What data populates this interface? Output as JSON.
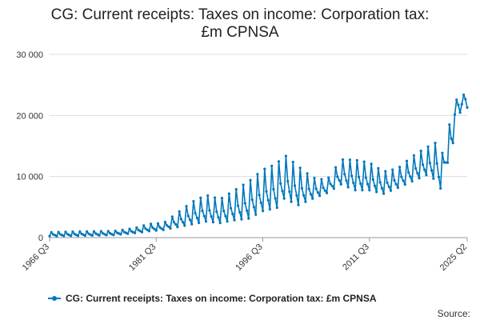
{
  "title_line1": "CG: Current receipts: Taxes on income: Corporation tax:",
  "title_line2": "£m CPNSA",
  "legend_label": "CG: Current receipts: Taxes on income: Corporation tax: £m CPNSA",
  "source_label": "Source:",
  "colors": {
    "series": "#0077bb",
    "grid": "#dddddd",
    "axis": "#999999"
  },
  "chart_data": {
    "type": "line",
    "title": "CG: Current receipts: Taxes on income: Corporation tax: £m CPNSA",
    "xlabel": "",
    "ylabel": "",
    "ylim": [
      0,
      30000
    ],
    "yticks": [
      0,
      10000,
      20000,
      30000
    ],
    "ytick_labels": [
      "0",
      "10 000",
      "20 000",
      "30 000"
    ],
    "x_start": "1966 Q3",
    "x_end": "2025 Q2",
    "xtick_labels": [
      "1966 Q3",
      "1981 Q3",
      "1996 Q3",
      "2011 Q3",
      "2025 Q2"
    ],
    "xtick_index": [
      0,
      60,
      120,
      180,
      235
    ],
    "series": [
      {
        "name": "CG: Current receipts: Taxes on income: Corporation tax: £m CPNSA",
        "frequency": "quarterly",
        "anchors": [
          [
            0,
            200,
            900
          ],
          [
            12,
            250,
            1000
          ],
          [
            24,
            300,
            1050
          ],
          [
            36,
            400,
            1100
          ],
          [
            48,
            700,
            1600
          ],
          [
            56,
            1000,
            2300
          ],
          [
            64,
            1200,
            2400
          ],
          [
            72,
            1600,
            4200
          ],
          [
            80,
            2000,
            6000
          ],
          [
            88,
            2400,
            7200
          ],
          [
            96,
            2200,
            6500
          ],
          [
            104,
            2600,
            8000
          ],
          [
            112,
            2800,
            9500
          ],
          [
            120,
            4000,
            11500
          ],
          [
            128,
            4500,
            12500
          ],
          [
            132,
            6000,
            14000
          ],
          [
            140,
            5000,
            12000
          ],
          [
            148,
            6200,
            10000
          ],
          [
            156,
            7200,
            9500
          ],
          [
            164,
            8500,
            13000
          ],
          [
            172,
            7500,
            13000
          ],
          [
            180,
            7500,
            12500
          ],
          [
            188,
            7000,
            11000
          ],
          [
            196,
            8000,
            11500
          ],
          [
            204,
            9000,
            13500
          ],
          [
            212,
            10000,
            15000
          ],
          [
            218,
            9000,
            16000
          ],
          [
            220,
            7800,
            13000
          ],
          [
            224,
            12000,
            17500
          ],
          [
            228,
            14000,
            22800
          ],
          [
            232,
            18000,
            23500
          ],
          [
            235,
            18000,
            24000
          ]
        ]
      }
    ]
  }
}
